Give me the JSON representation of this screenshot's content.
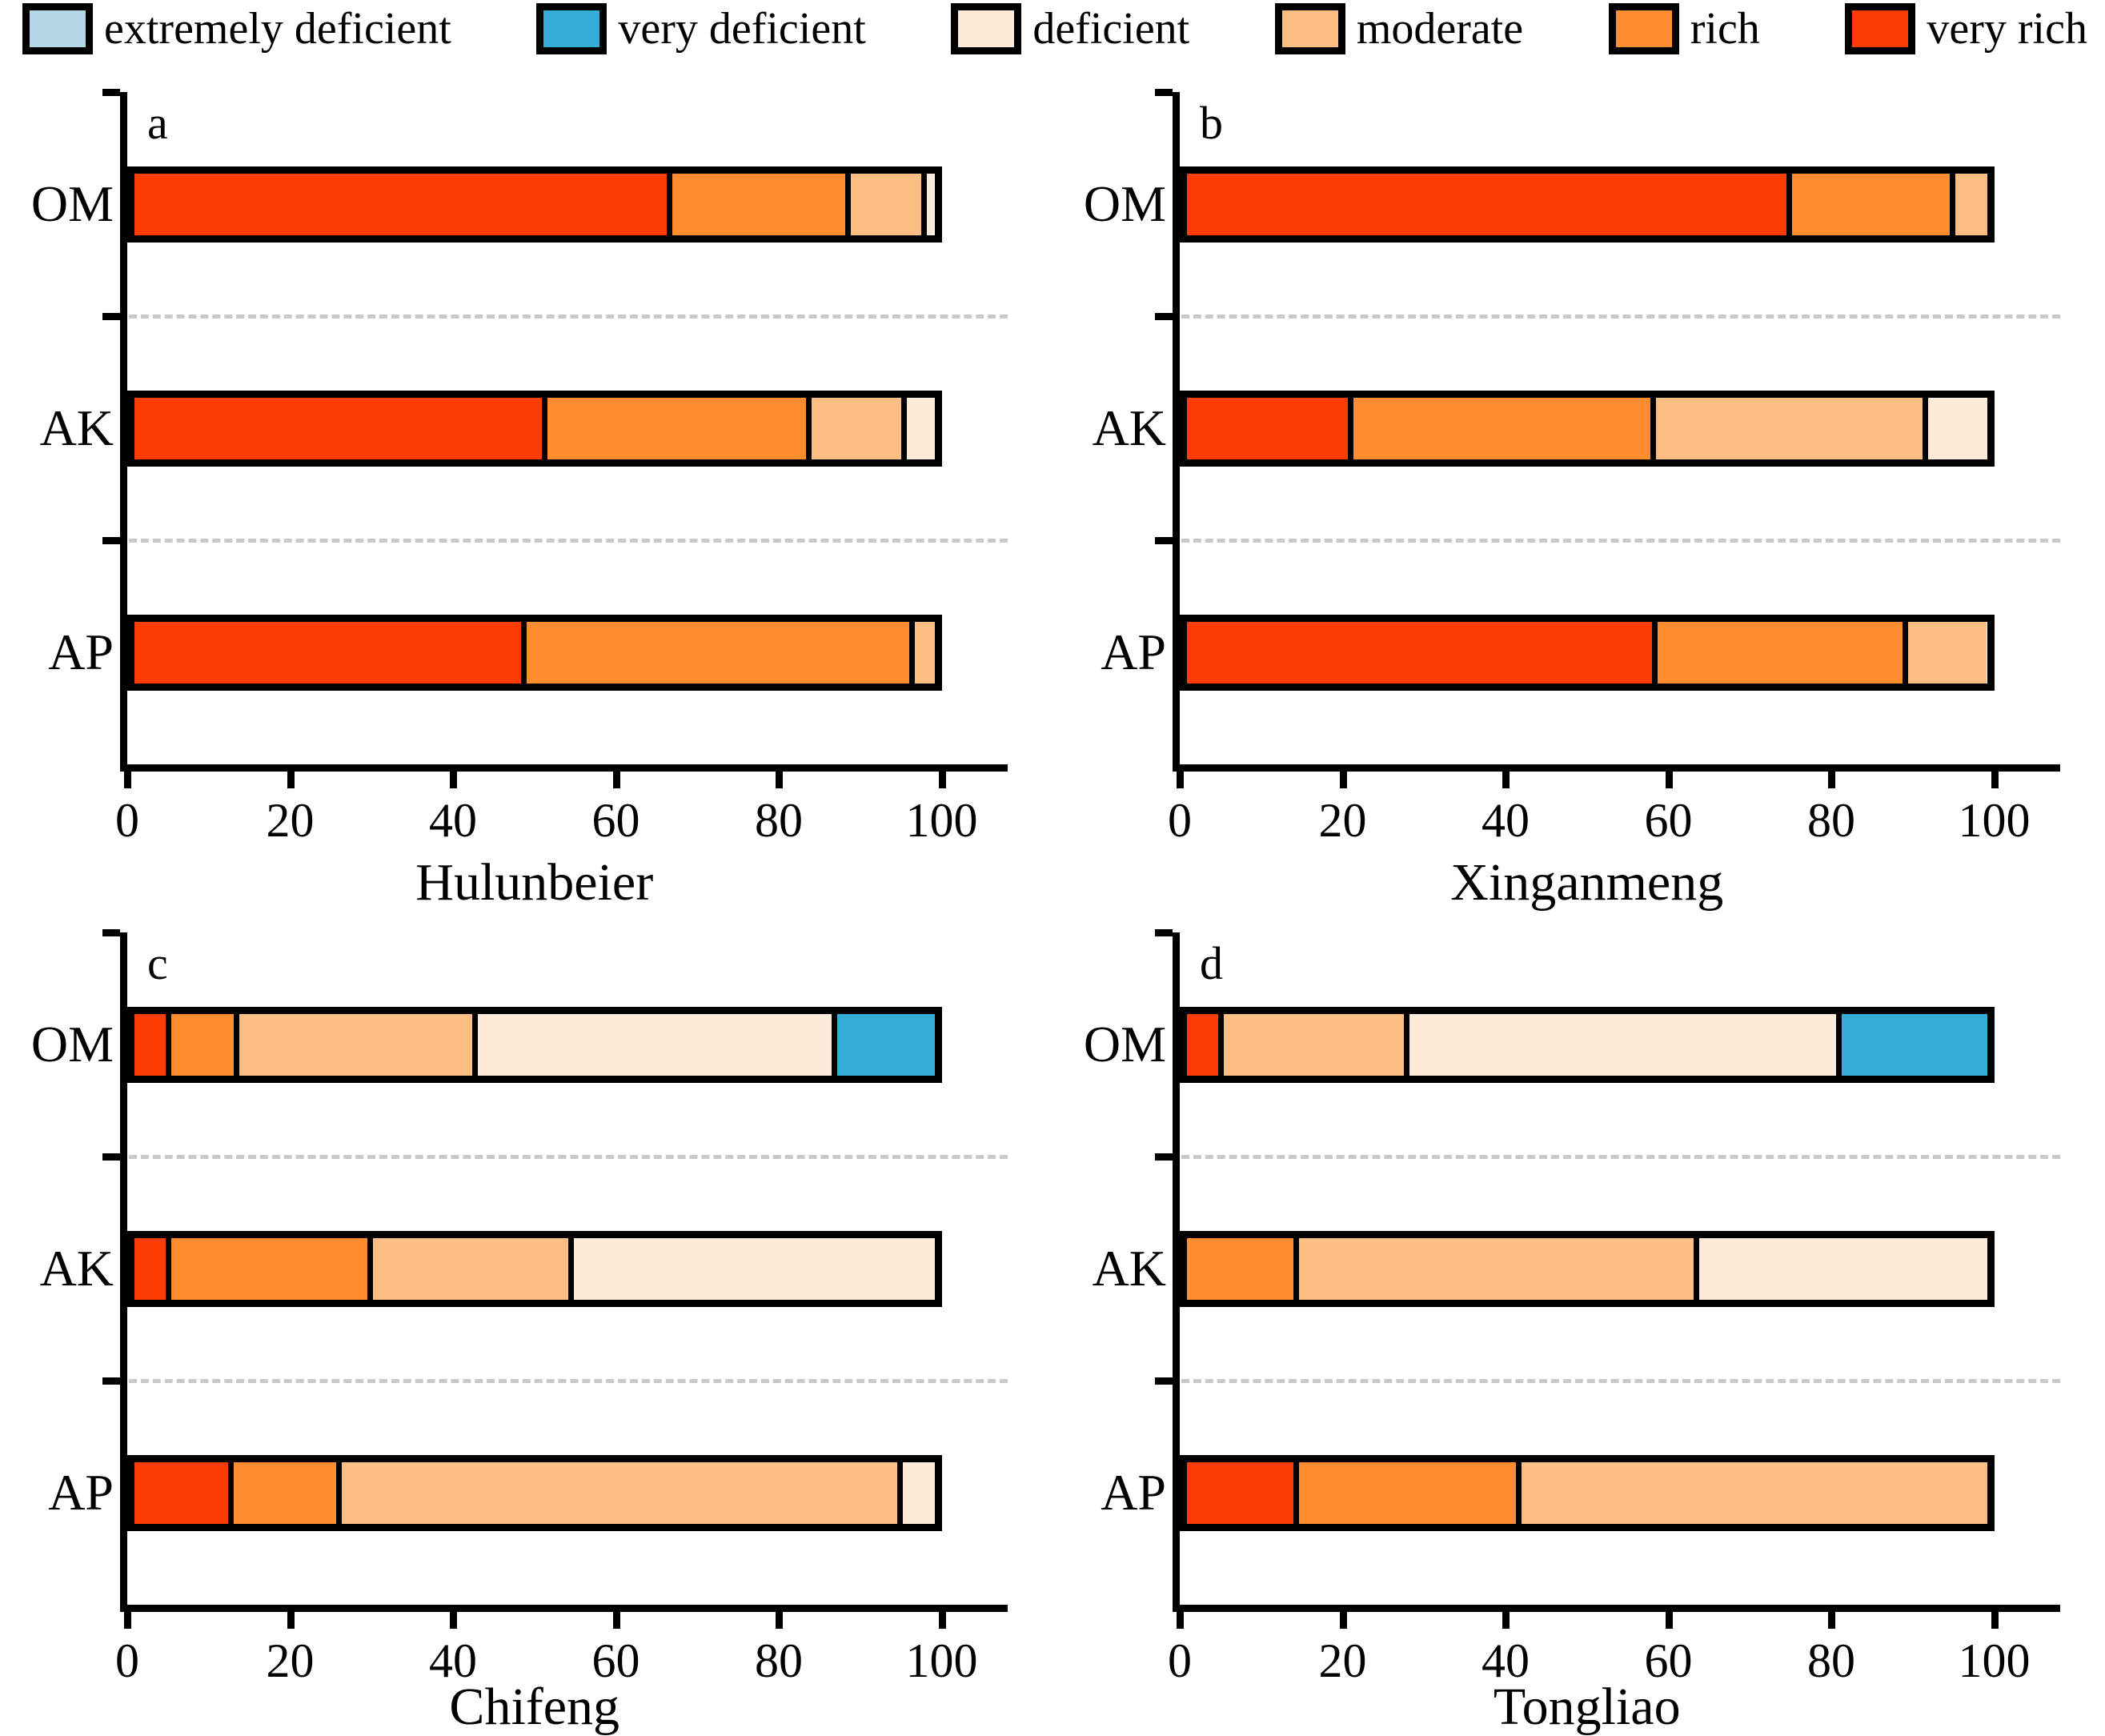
{
  "legend": {
    "items": [
      {
        "label": "extremely deficient",
        "color": "#B5D7E8"
      },
      {
        "label": "very deficient",
        "color": "#36ACD8"
      },
      {
        "label": "deficient",
        "color": "#FDEBDA"
      },
      {
        "label": "moderate",
        "color": "#FDBE83"
      },
      {
        "label": "rich",
        "color": "#FD8D2E"
      },
      {
        "label": "very rich",
        "color": "#FC3D03"
      }
    ]
  },
  "axis": {
    "tick_labels": [
      "0",
      "20",
      "40",
      "60",
      "80",
      "100"
    ],
    "xlim": [
      0,
      100
    ]
  },
  "chart_data": [
    {
      "type": "bar",
      "stacked": true,
      "orientation": "horizontal",
      "panel_label": "a",
      "title": "Hulunbeier",
      "categories": [
        "OM",
        "AK",
        "AP"
      ],
      "xlim": [
        0,
        100
      ],
      "xticks": [
        0,
        20,
        40,
        60,
        80,
        100
      ],
      "grid": false,
      "series": [
        {
          "name": "very rich",
          "values": [
            68,
            52,
            49
          ]
        },
        {
          "name": "rich",
          "values": [
            22,
            33,
            48.5
          ]
        },
        {
          "name": "moderate",
          "values": [
            9,
            11.5,
            2.5
          ]
        },
        {
          "name": "deficient",
          "values": [
            1,
            3.5,
            0
          ]
        },
        {
          "name": "very deficient",
          "values": [
            0,
            0,
            0
          ]
        },
        {
          "name": "extremely deficient",
          "values": [
            0,
            0,
            0
          ]
        }
      ]
    },
    {
      "type": "bar",
      "stacked": true,
      "orientation": "horizontal",
      "panel_label": "b",
      "title": "Xinganmeng",
      "categories": [
        "OM",
        "AK",
        "AP"
      ],
      "xlim": [
        0,
        100
      ],
      "xticks": [
        0,
        20,
        40,
        60,
        80,
        100
      ],
      "grid": false,
      "series": [
        {
          "name": "very rich",
          "values": [
            76,
            20.5,
            59
          ]
        },
        {
          "name": "rich",
          "values": [
            20,
            38,
            31
          ]
        },
        {
          "name": "moderate",
          "values": [
            4,
            34,
            10
          ]
        },
        {
          "name": "deficient",
          "values": [
            0,
            7.5,
            0
          ]
        },
        {
          "name": "very deficient",
          "values": [
            0,
            0,
            0
          ]
        },
        {
          "name": "extremely deficient",
          "values": [
            0,
            0,
            0
          ]
        }
      ]
    },
    {
      "type": "bar",
      "stacked": true,
      "orientation": "horizontal",
      "panel_label": "c",
      "title": "Chifeng",
      "categories": [
        "OM",
        "AK",
        "AP"
      ],
      "xlim": [
        0,
        100
      ],
      "xticks": [
        0,
        20,
        40,
        60,
        80,
        100
      ],
      "grid": false,
      "series": [
        {
          "name": "very rich",
          "values": [
            4,
            4,
            12
          ]
        },
        {
          "name": "rich",
          "values": [
            8,
            25,
            13
          ]
        },
        {
          "name": "moderate",
          "values": [
            30,
            25,
            71
          ]
        },
        {
          "name": "deficient",
          "values": [
            45.5,
            46,
            4
          ]
        },
        {
          "name": "very deficient",
          "values": [
            12.5,
            0,
            0
          ]
        },
        {
          "name": "extremely deficient",
          "values": [
            0,
            0,
            0
          ]
        }
      ]
    },
    {
      "type": "bar",
      "stacked": true,
      "orientation": "horizontal",
      "panel_label": "d",
      "title": "Tongliao",
      "categories": [
        "OM",
        "AK",
        "AP"
      ],
      "xlim": [
        0,
        100
      ],
      "xticks": [
        0,
        20,
        40,
        60,
        80,
        100
      ],
      "grid": false,
      "series": [
        {
          "name": "very rich",
          "values": [
            4,
            0,
            13.5
          ]
        },
        {
          "name": "rich",
          "values": [
            0,
            13.5,
            27.5
          ]
        },
        {
          "name": "moderate",
          "values": [
            23,
            50,
            59
          ]
        },
        {
          "name": "deficient",
          "values": [
            54.5,
            36.5,
            0
          ]
        },
        {
          "name": "very deficient",
          "values": [
            18.5,
            0,
            0
          ]
        },
        {
          "name": "extremely deficient",
          "values": [
            0,
            0,
            0
          ]
        }
      ]
    }
  ]
}
